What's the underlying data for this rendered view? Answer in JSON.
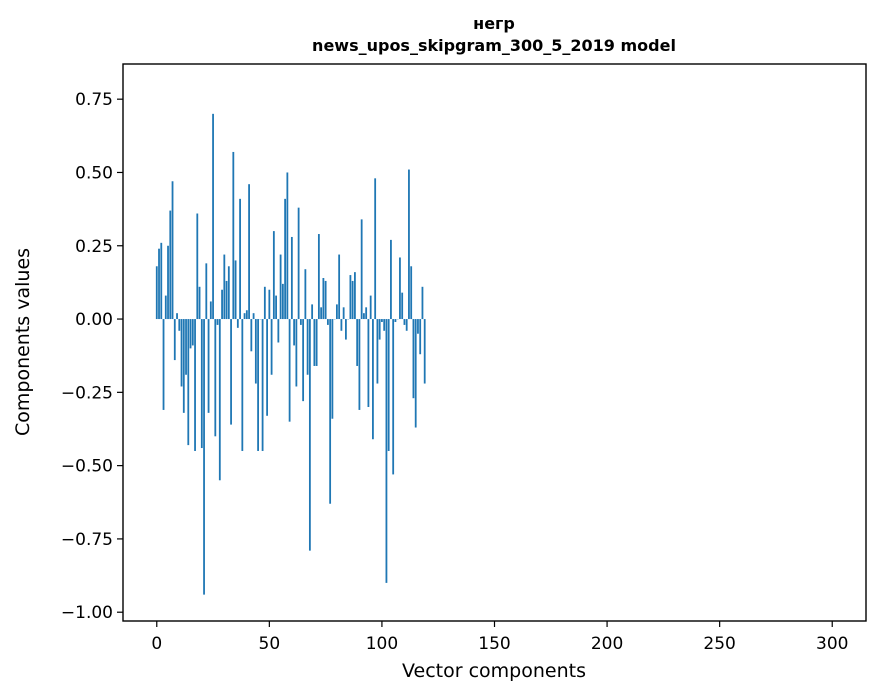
{
  "chart_data": {
    "type": "bar",
    "title_line1": "негр",
    "title_line2": "news_upos_skipgram_300_5_2019 model",
    "xlabel": "Vector components",
    "ylabel": "Components values",
    "xlim": [
      -15,
      315
    ],
    "ylim": [
      -1.03,
      0.87
    ],
    "x_ticks": [
      0,
      50,
      100,
      150,
      200,
      250,
      300
    ],
    "x_tick_labels": [
      "0",
      "50",
      "100",
      "150",
      "200",
      "250",
      "300"
    ],
    "y_ticks": [
      0.75,
      0.5,
      0.25,
      0.0,
      -0.25,
      -0.5,
      -0.75,
      -1.0
    ],
    "y_tick_labels": [
      "0.75",
      "0.50",
      "0.25",
      "0.00",
      "−0.25",
      "−0.50",
      "−0.75",
      "−1.00"
    ],
    "bar_color": "#1f77b4",
    "bar_width": 0.8,
    "grid": false,
    "legend": "none",
    "values": [
      0.18,
      0.24,
      0.26,
      -0.31,
      0.08,
      0.25,
      0.37,
      0.47,
      -0.14,
      0.02,
      -0.04,
      -0.23,
      -0.32,
      -0.19,
      -0.43,
      -0.1,
      -0.09,
      -0.45,
      0.36,
      0.11,
      -0.44,
      -0.94,
      0.19,
      -0.32,
      0.06,
      0.7,
      -0.4,
      -0.02,
      -0.55,
      0.1,
      0.22,
      0.13,
      0.18,
      -0.36,
      0.57,
      0.2,
      -0.03,
      0.41,
      -0.45,
      0.02,
      0.03,
      0.46,
      -0.11,
      0.02,
      -0.22,
      -0.45,
      0.0,
      -0.45,
      0.11,
      -0.33,
      0.1,
      -0.19,
      0.3,
      0.08,
      -0.08,
      0.22,
      0.12,
      0.41,
      0.5,
      -0.35,
      0.28,
      -0.09,
      -0.23,
      0.38,
      -0.02,
      -0.28,
      0.17,
      -0.19,
      -0.79,
      0.05,
      -0.16,
      -0.16,
      0.29,
      0.04,
      0.14,
      0.13,
      -0.02,
      -0.63,
      -0.34,
      0.0,
      0.05,
      0.22,
      -0.04,
      0.04,
      -0.07,
      0.0,
      0.15,
      0.13,
      0.16,
      -0.16,
      -0.31,
      0.34,
      0.02,
      0.04,
      -0.3,
      0.08,
      -0.41,
      0.48,
      -0.22,
      -0.07,
      -0.01,
      -0.04,
      -0.9,
      -0.45,
      0.27,
      -0.53,
      -0.01,
      0.0,
      0.21,
      0.09,
      -0.02,
      -0.04,
      0.51,
      0.18,
      -0.27,
      -0.37,
      -0.05,
      -0.12,
      0.11,
      -0.22
    ]
  }
}
